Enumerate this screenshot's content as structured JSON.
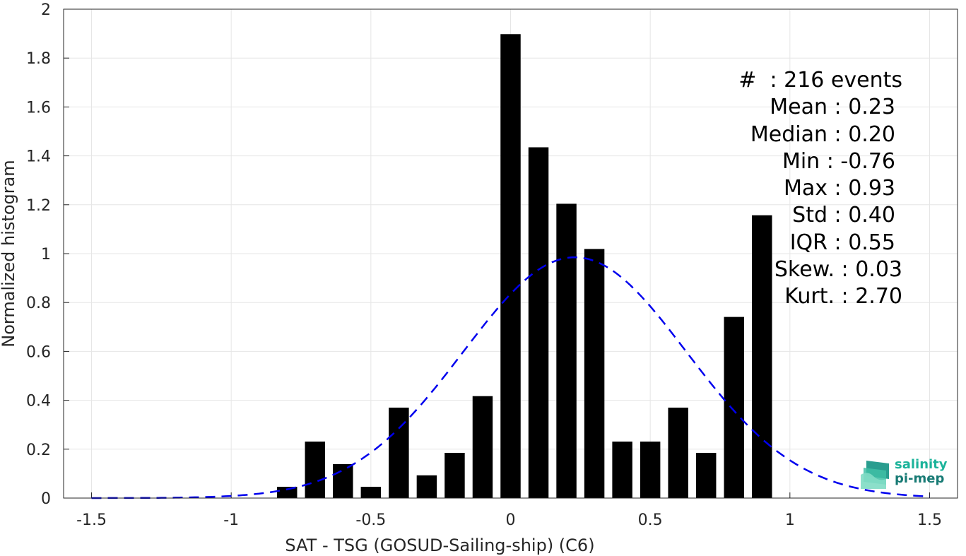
{
  "chart_data": {
    "type": "bar",
    "xlabel": "SAT - TSG (GOSUD-Sailing-ship) (C6)",
    "ylabel": "Normalized histogram",
    "xlim": [
      -1.6,
      1.6
    ],
    "ylim": [
      0,
      2
    ],
    "xticks": [
      "-1.5",
      "-1",
      "-0.5",
      "0",
      "0.5",
      "1",
      "1.5"
    ],
    "yticks": [
      "0",
      "0.2",
      "0.4",
      "0.6",
      "0.8",
      "1",
      "1.2",
      "1.4",
      "1.6",
      "1.8",
      "2"
    ],
    "grid": true,
    "bin_centers": [
      -0.8,
      -0.7,
      -0.6,
      -0.5,
      -0.4,
      -0.3,
      -0.2,
      -0.1,
      0.0,
      0.1,
      0.2,
      0.3,
      0.4,
      0.5,
      0.6,
      0.7,
      0.8,
      0.9
    ],
    "values": [
      0.046,
      0.231,
      0.139,
      0.046,
      0.37,
      0.093,
      0.185,
      0.417,
      1.898,
      1.435,
      1.204,
      1.019,
      0.231,
      0.231,
      0.37,
      0.185,
      0.741,
      1.157
    ],
    "bar_color": "#000000",
    "fit_curve": {
      "type": "normal",
      "mean": 0.23,
      "std": 0.4,
      "peak": 0.985,
      "color": "#0000ee",
      "style": "dashed"
    },
    "stats": [
      "#  : 216 events",
      "Mean : 0.23",
      "Median : 0.20",
      "Min : -0.76",
      "Max : 0.93",
      "Std : 0.40",
      "IQR : 0.55",
      "Skew. : 0.03",
      "Kurt. : 2.70"
    ]
  },
  "logo": {
    "line1": "salinity",
    "line2": "pi-mep"
  }
}
